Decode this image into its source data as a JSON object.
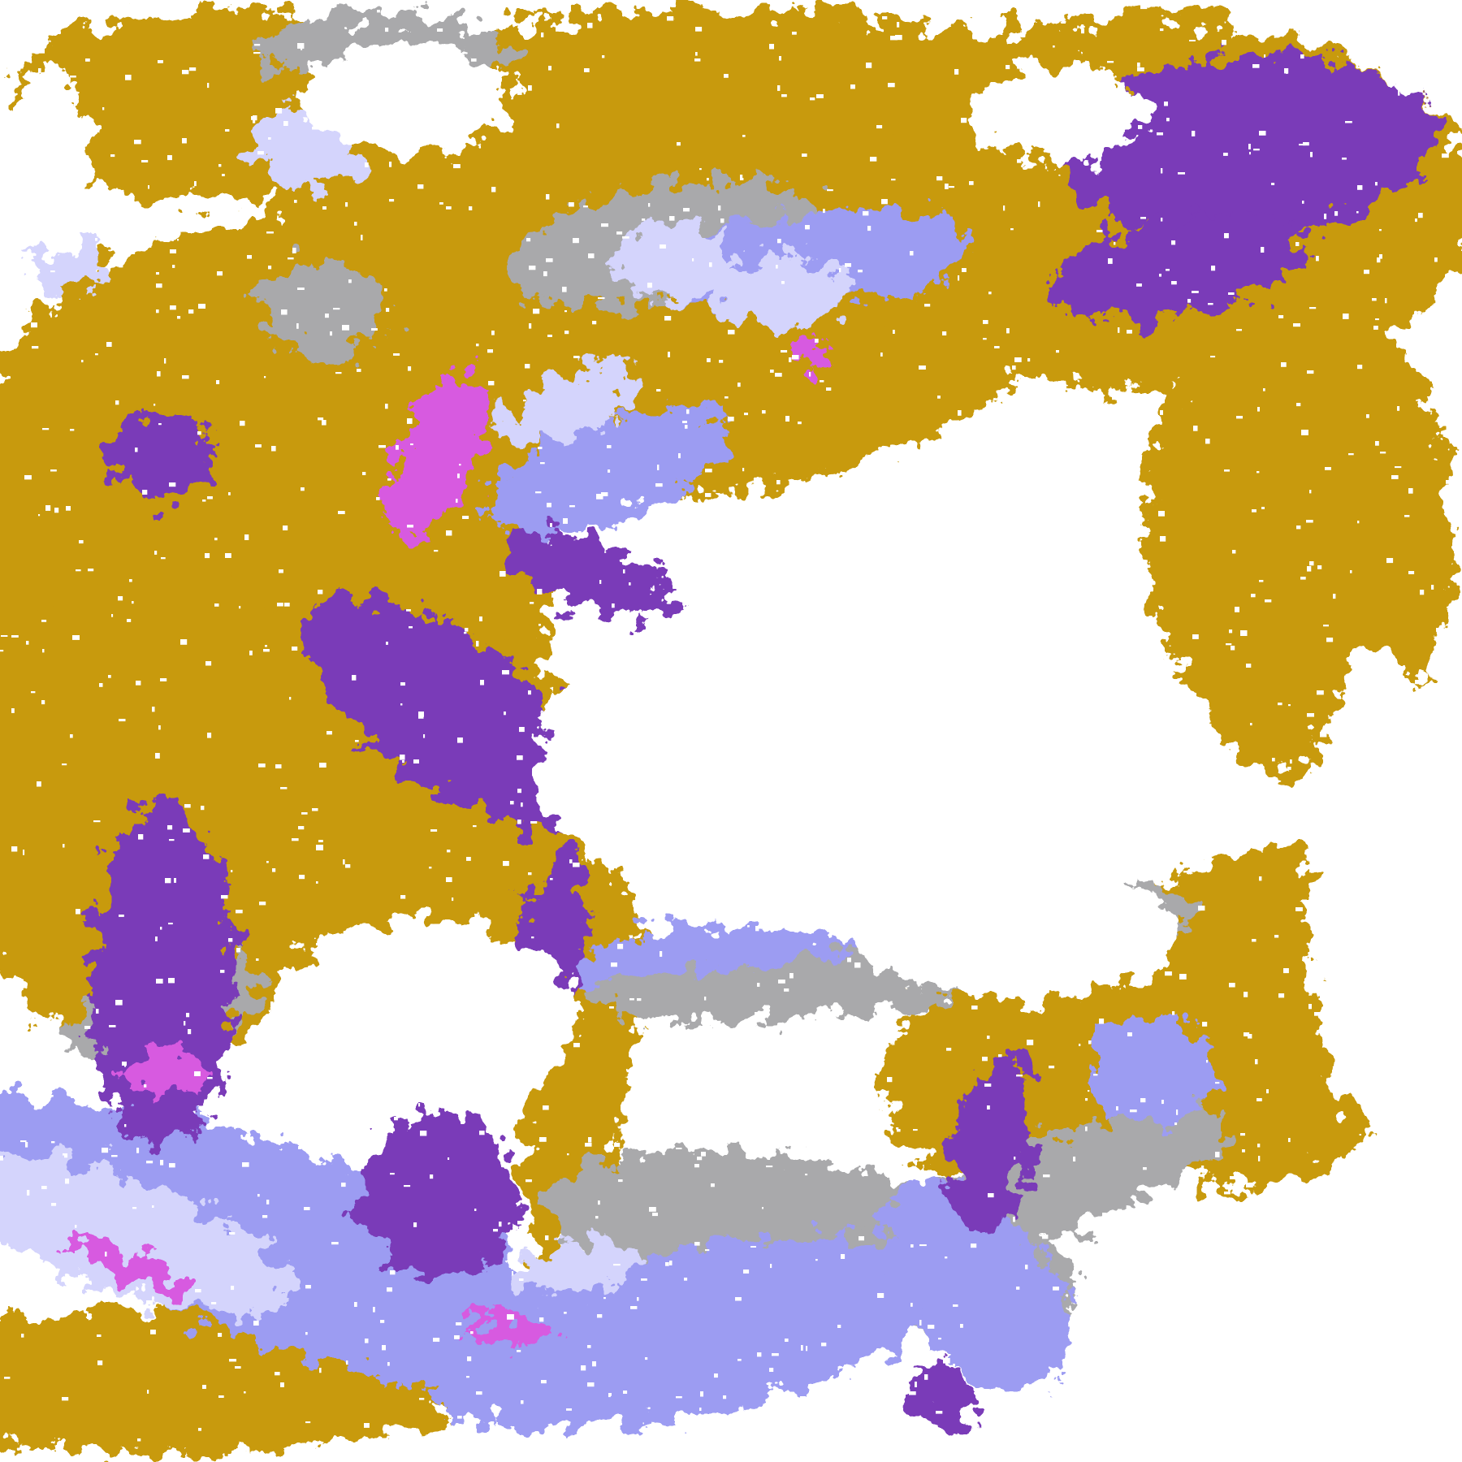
{
  "map": {
    "type": "satellite-cloud-classification",
    "colors": {
      "clear": "#ffffff",
      "gold": "#c89a08",
      "purple": "#7a3ab8",
      "magenta": "#d75ae0",
      "lavender": "#9c9cf2",
      "pale_lavender": "#d4d4fc",
      "gray": "#a9a9ab"
    }
  }
}
